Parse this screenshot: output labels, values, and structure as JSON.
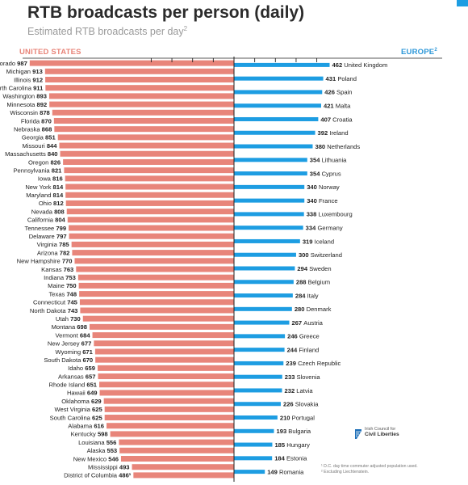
{
  "title": "RTB broadcasts per person (daily)",
  "subtitle": "Estimated RTB broadcasts per day",
  "subtitle_sup": "2",
  "colors": {
    "us_bar": "#e8857a",
    "eu_bar": "#1d9de2",
    "axis": "#222222"
  },
  "logo": {
    "icon": "harp-icon",
    "line1": "Irish Council for",
    "line2": "Civil Liberties"
  },
  "footnotes": [
    "¹ D.C. day time commuter adjusted population used.",
    "² Excluding Liechtenstein."
  ],
  "chart_data": [
    {
      "type": "bar",
      "orientation": "horizontal",
      "region_label": "UNITED STATES",
      "categories": [
        "Colorado",
        "Michigan",
        "Illinois",
        "North Carolina",
        "Washington",
        "Minnesota",
        "Wisconsin",
        "Florida",
        "Nebraska",
        "Georgia",
        "Missouri",
        "Massachusetts",
        "Oregon",
        "Pennsylvania",
        "Iowa",
        "New York",
        "Maryland",
        "Ohio",
        "Nevada",
        "California",
        "Tennessee",
        "Delaware",
        "Virginia",
        "Arizona",
        "New Hampshire",
        "Kansas",
        "Indiana",
        "Maine",
        "Texas",
        "Connecticut",
        "North Dakota",
        "Utah",
        "Montana",
        "Vermont",
        "New Jersey",
        "Wyoming",
        "South Dakota",
        "Idaho",
        "Arkansas",
        "Rhode Island",
        "Hawaii",
        "Oklahoma",
        "West Virginia",
        "South Carolina",
        "Alabama",
        "Kentucky",
        "Louisiana",
        "Alaska",
        "New Mexico",
        "Mississippi",
        "District of Columbia"
      ],
      "values": [
        987,
        913,
        912,
        911,
        893,
        892,
        878,
        870,
        868,
        851,
        844,
        840,
        826,
        821,
        816,
        814,
        814,
        812,
        808,
        804,
        799,
        797,
        785,
        782,
        770,
        763,
        753,
        750,
        748,
        745,
        743,
        730,
        698,
        684,
        677,
        671,
        670,
        659,
        657,
        651,
        649,
        629,
        625,
        625,
        616,
        598,
        556,
        553,
        546,
        493,
        486
      ],
      "value_suffixes": [
        "",
        "",
        "",
        "",
        "",
        "",
        "",
        "",
        "",
        "",
        "",
        "",
        "",
        "",
        "",
        "",
        "",
        "",
        "",
        "",
        "",
        "",
        "",
        "",
        "",
        "",
        "",
        "",
        "",
        "",
        "",
        "",
        "",
        "",
        "",
        "",
        "",
        "",
        "",
        "",
        "",
        "",
        "",
        "",
        "",
        "",
        "",
        "",
        "",
        "",
        "¹"
      ],
      "xlim": [
        0,
        1000
      ],
      "direction": "leftward",
      "grid": false
    },
    {
      "type": "bar",
      "orientation": "horizontal",
      "region_label": "EUROPE",
      "region_label_sup": "2",
      "categories": [
        "United Kingdom",
        "Poland",
        "Spain",
        "Malta",
        "Croatia",
        "Ireland",
        "Netherlands",
        "Lithuania",
        "Cyprus",
        "Norway",
        "France",
        "Luxembourg",
        "Germany",
        "Iceland",
        "Switzerland",
        "Sweden",
        "Belgium",
        "Italy",
        "Denmark",
        "Austria",
        "Greece",
        "Finland",
        "Czech Republic",
        "Slovenia",
        "Latvia",
        "Slovakia",
        "Portugal",
        "Bulgaria",
        "Hungary",
        "Estonia",
        "Romania"
      ],
      "values": [
        462,
        431,
        426,
        421,
        407,
        392,
        380,
        354,
        354,
        340,
        340,
        338,
        334,
        319,
        300,
        294,
        288,
        284,
        280,
        267,
        246,
        244,
        239,
        233,
        232,
        226,
        210,
        193,
        185,
        184,
        149
      ],
      "xlim": [
        0,
        1000
      ],
      "direction": "rightward",
      "grid": false
    }
  ]
}
